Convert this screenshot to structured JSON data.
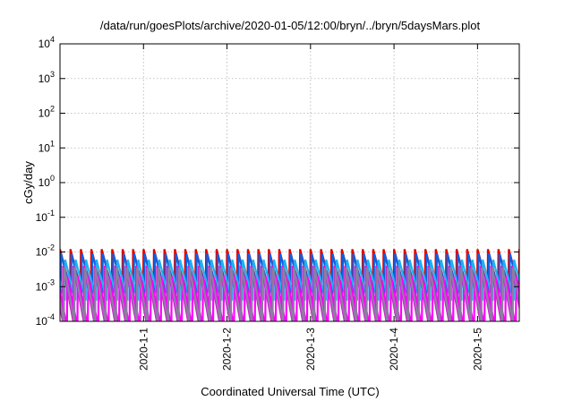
{
  "chart_data": {
    "type": "line",
    "title": "/data/run/goesPlots/archive/2020-01-05/12:00/bryn/../bryn/5daysMars.plot",
    "xlabel": "Coordinated Universal Time (UTC)",
    "ylabel": "cGy/day",
    "y_scale": "log",
    "ylim": [
      0.0001,
      10000
    ],
    "y_ticks": [
      {
        "value": 0.0001,
        "mantissa": "10",
        "exp": "-4"
      },
      {
        "value": 0.001,
        "mantissa": "10",
        "exp": "-3"
      },
      {
        "value": 0.01,
        "mantissa": "10",
        "exp": "-2"
      },
      {
        "value": 0.1,
        "mantissa": "10",
        "exp": "-1"
      },
      {
        "value": 1,
        "mantissa": "10",
        "exp": "0"
      },
      {
        "value": 10,
        "mantissa": "10",
        "exp": "1"
      },
      {
        "value": 100,
        "mantissa": "10",
        "exp": "2"
      },
      {
        "value": 1000,
        "mantissa": "10",
        "exp": "3"
      },
      {
        "value": 10000,
        "mantissa": "10",
        "exp": "4"
      }
    ],
    "xlim": [
      "2019-12-31T00:00",
      "2020-01-05T12:00"
    ],
    "x_ticks": [
      {
        "value": "2020-01-01T00:00",
        "label": "2020-1-1"
      },
      {
        "value": "2020-01-02T00:00",
        "label": "2020-1-2"
      },
      {
        "value": "2020-01-03T00:00",
        "label": "2020-1-3"
      },
      {
        "value": "2020-01-04T00:00",
        "label": "2020-1-4"
      },
      {
        "value": "2020-01-05T00:00",
        "label": "2020-1-5"
      }
    ],
    "grid": true,
    "legend": "none",
    "pattern_period_hours": 3,
    "series": [
      {
        "color": "#e00000",
        "peak": 0.012,
        "trough": 0.0009,
        "phase_hours": 0.0
      },
      {
        "color": "#1060e0",
        "peak": 0.009,
        "trough": 0.0006,
        "phase_hours": 0.3
      },
      {
        "color": "#20b0f0",
        "peak": 0.006,
        "trough": 0.0004,
        "phase_hours": 1.5
      },
      {
        "color": "#d020d0",
        "peak": 0.004,
        "trough": 0.0001,
        "phase_hours": 0.9
      },
      {
        "color": "#ff00ff",
        "peak": 0.002,
        "trough": 7e-05,
        "phase_hours": 2.1
      },
      {
        "color": "#8a7fa0",
        "peak": 0.0035,
        "trough": 0.0001,
        "phase_hours": 1.2
      }
    ]
  }
}
